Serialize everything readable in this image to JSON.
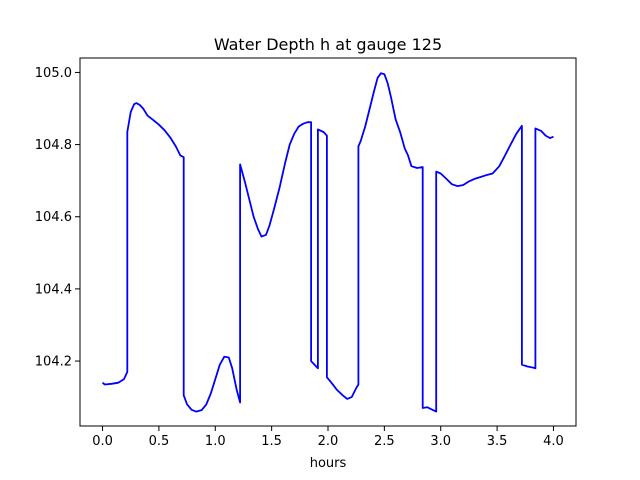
{
  "chart_data": {
    "type": "line",
    "title": "Water Depth h at gauge 125",
    "xlabel": "hours",
    "ylabel": "",
    "xlim": [
      -0.2,
      4.2
    ],
    "ylim": [
      104.02,
      105.04
    ],
    "x_ticks": [
      0.0,
      0.5,
      1.0,
      1.5,
      2.0,
      2.5,
      3.0,
      3.5,
      4.0
    ],
    "x_tick_labels": [
      "0.0",
      "0.5",
      "1.0",
      "1.5",
      "2.0",
      "2.5",
      "3.0",
      "3.5",
      "4.0"
    ],
    "y_ticks": [
      104.2,
      104.4,
      104.6,
      104.8,
      105.0
    ],
    "y_tick_labels": [
      "104.2",
      "104.4",
      "104.6",
      "104.8",
      "105.0"
    ],
    "grid": false,
    "legend": "none",
    "series": [
      {
        "color": "#0000ff",
        "x": [
          0.0,
          0.02,
          0.08,
          0.14,
          0.19,
          0.22,
          0.22,
          0.25,
          0.28,
          0.3,
          0.33,
          0.36,
          0.4,
          0.45,
          0.5,
          0.55,
          0.6,
          0.65,
          0.69,
          0.72,
          0.72,
          0.75,
          0.79,
          0.83,
          0.88,
          0.92,
          0.96,
          1.0,
          1.04,
          1.08,
          1.12,
          1.15,
          1.19,
          1.22,
          1.22,
          1.26,
          1.3,
          1.34,
          1.38,
          1.41,
          1.45,
          1.48,
          1.52,
          1.57,
          1.62,
          1.66,
          1.7,
          1.74,
          1.78,
          1.82,
          1.85,
          1.85,
          1.91,
          1.91,
          1.96,
          1.99,
          1.99,
          2.03,
          2.08,
          2.13,
          2.17,
          2.21,
          2.25,
          2.27,
          2.27,
          2.29,
          2.33,
          2.37,
          2.41,
          2.44,
          2.47,
          2.5,
          2.53,
          2.56,
          2.6,
          2.6,
          2.64,
          2.68,
          2.71,
          2.74,
          2.79,
          2.84,
          2.84,
          2.88,
          2.92,
          2.96,
          2.96,
          3.0,
          3.05,
          3.1,
          3.15,
          3.2,
          3.25,
          3.3,
          3.35,
          3.4,
          3.46,
          3.52,
          3.57,
          3.62,
          3.67,
          3.72,
          3.72,
          3.77,
          3.82,
          3.84,
          3.84,
          3.89,
          3.93,
          3.97,
          4.0
        ],
        "y": [
          104.14,
          104.135,
          104.137,
          104.14,
          104.15,
          104.17,
          104.835,
          104.89,
          104.912,
          104.915,
          104.91,
          104.9,
          104.88,
          104.868,
          104.855,
          104.84,
          104.82,
          104.795,
          104.77,
          104.765,
          104.105,
          104.08,
          104.065,
          104.06,
          104.064,
          104.08,
          104.11,
          104.15,
          104.19,
          104.212,
          104.21,
          104.18,
          104.12,
          104.085,
          104.745,
          104.7,
          104.65,
          104.6,
          104.565,
          104.545,
          104.55,
          104.575,
          104.62,
          104.68,
          104.75,
          104.8,
          104.83,
          104.85,
          104.858,
          104.862,
          104.862,
          104.2,
          104.18,
          104.842,
          104.835,
          104.825,
          104.155,
          104.14,
          104.12,
          104.105,
          104.095,
          104.1,
          104.125,
          104.135,
          104.795,
          104.81,
          104.85,
          104.9,
          104.95,
          104.985,
          104.998,
          104.995,
          104.97,
          104.93,
          104.87,
          104.87,
          104.835,
          104.79,
          104.77,
          104.74,
          104.735,
          104.738,
          104.07,
          104.072,
          104.066,
          104.06,
          104.725,
          104.72,
          104.705,
          104.69,
          104.685,
          104.688,
          104.698,
          104.705,
          104.71,
          104.715,
          104.72,
          104.74,
          104.77,
          104.8,
          104.83,
          104.852,
          104.19,
          104.185,
          104.182,
          104.18,
          104.845,
          104.838,
          104.825,
          104.818,
          104.822
        ]
      }
    ]
  }
}
